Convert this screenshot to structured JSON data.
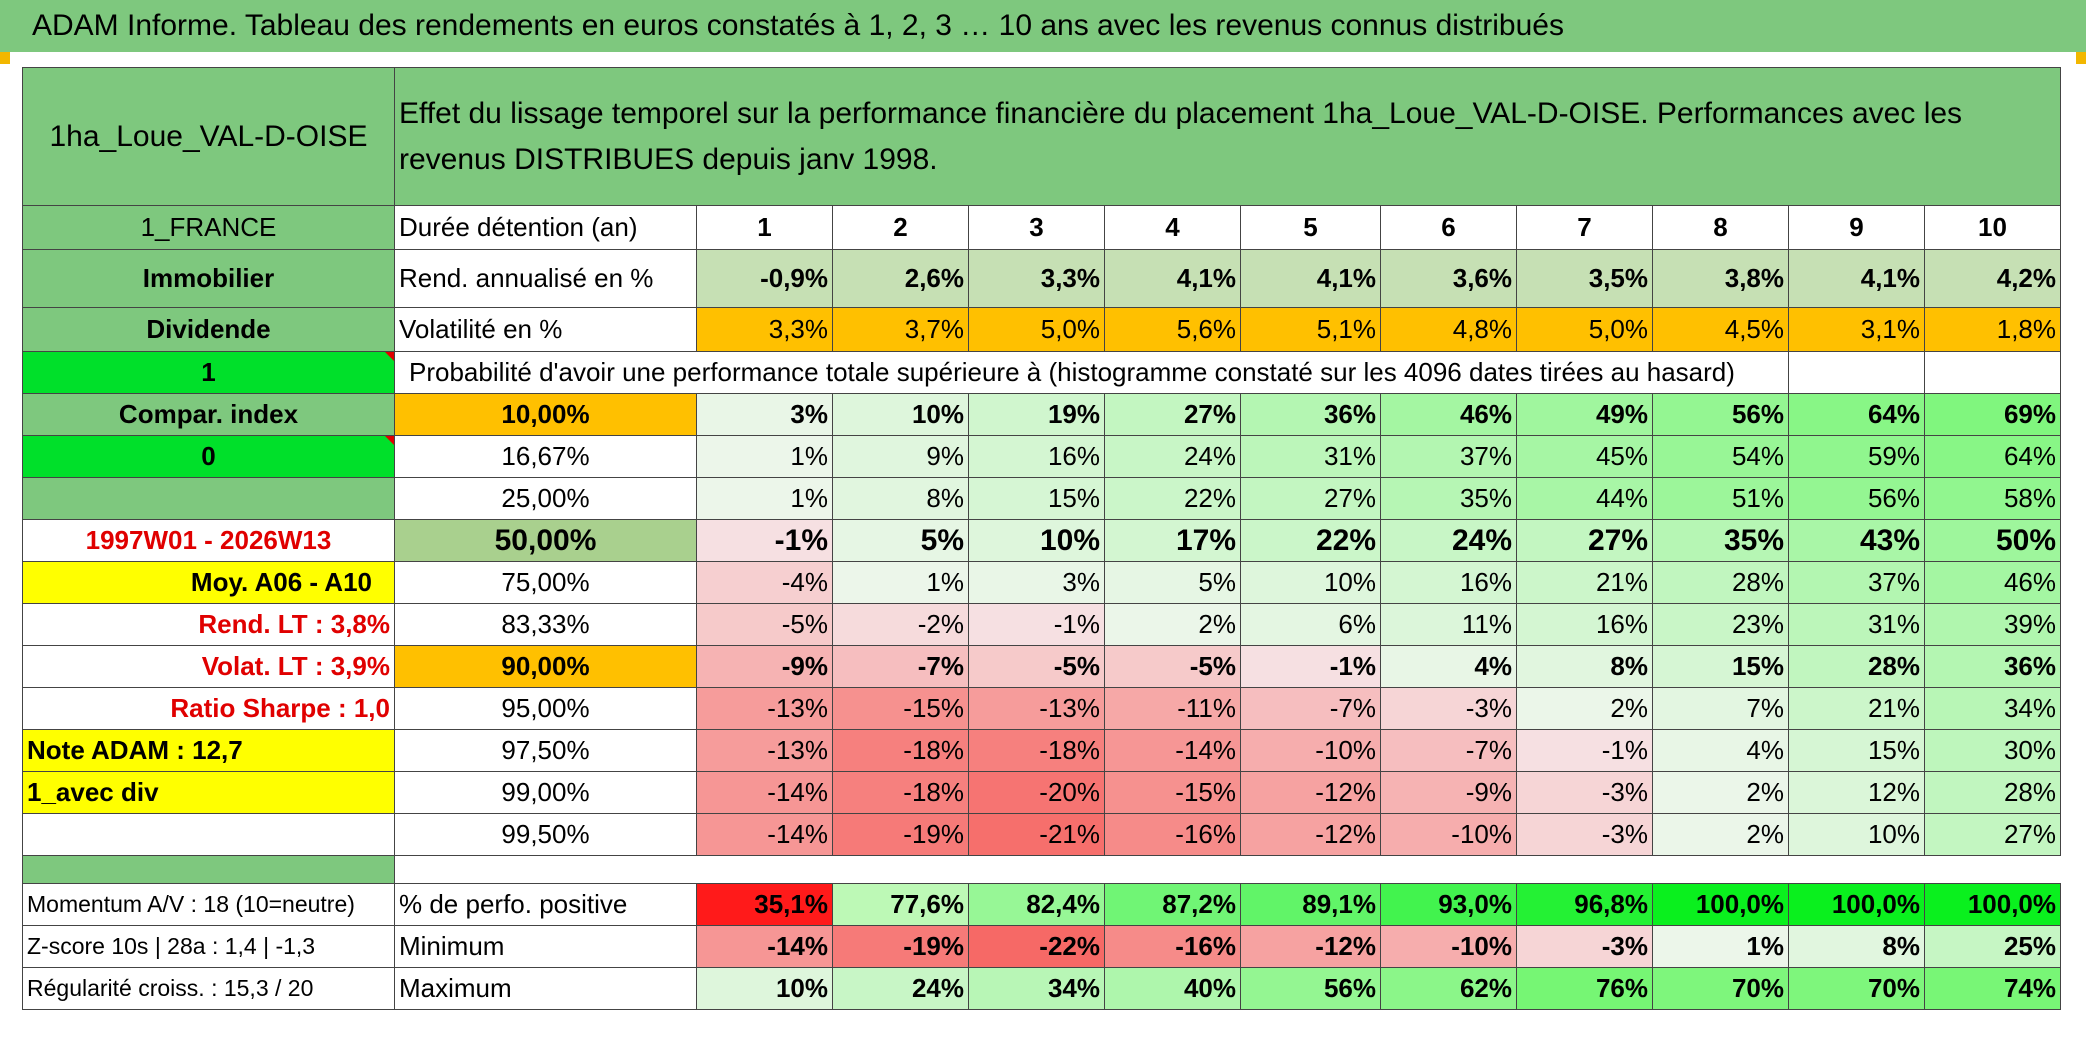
{
  "title": "ADAM Informe. Tableau des rendements en euros constatés à 1, 2, 3 … 10 ans avec les revenus connus distribués",
  "fund_name": "1ha_Loue_VAL-D-OISE",
  "description": "Effet du lissage temporel sur la performance financière du placement 1ha_Loue_VAL-D-OISE. Performances avec les revenus DISTRIBUES depuis janv 1998.",
  "side": {
    "country": "1_FRANCE",
    "category": "Immobilier",
    "income": "Dividende",
    "flag1": "1",
    "compar_index": "Compar. index",
    "flag0": "0",
    "period": "1997W01 - 2026W13",
    "moy": "Moy. A06 - A10",
    "rend_lt": "Rend. LT :   3,8%",
    "volat_lt": "Volat. LT :   3,9%",
    "sharpe": "Ratio Sharpe :    1,0",
    "note": "Note ADAM : 12,7",
    "avec_div": "1_avec div",
    "momentum": "Momentum A/V : 18 (10=neutre)",
    "zscore": "Z-score 10s | 28a : 1,4 | -1,3",
    "regularite": "Régularité croiss. : 15,3 / 20"
  },
  "labels": {
    "duree": "Durée détention (an)",
    "rend": "Rend. annualisé en %",
    "vol": "Volatilité en %",
    "proba": "Probabilité d'avoir une performance totale supérieure à (histogramme constaté sur les 4096 dates tirées au hasard)",
    "pos": "% de perfo. positive",
    "min": "Minimum",
    "max": "Maximum"
  },
  "years": [
    "1",
    "2",
    "3",
    "4",
    "5",
    "6",
    "7",
    "8",
    "9",
    "10"
  ],
  "rend_values": [
    "-0,9%",
    "2,6%",
    "3,3%",
    "4,1%",
    "4,1%",
    "3,6%",
    "3,5%",
    "3,8%",
    "4,1%",
    "4,2%"
  ],
  "vol_values": [
    "3,3%",
    "3,7%",
    "5,0%",
    "5,6%",
    "5,1%",
    "4,8%",
    "5,0%",
    "4,5%",
    "3,1%",
    "1,8%"
  ],
  "percentile_rows": [
    {
      "pct": "10,00%",
      "values": [
        "3%",
        "10%",
        "19%",
        "27%",
        "36%",
        "46%",
        "49%",
        "56%",
        "64%",
        "69%"
      ]
    },
    {
      "pct": "16,67%",
      "values": [
        "1%",
        "9%",
        "16%",
        "24%",
        "31%",
        "37%",
        "45%",
        "54%",
        "59%",
        "64%"
      ]
    },
    {
      "pct": "25,00%",
      "values": [
        "1%",
        "8%",
        "15%",
        "22%",
        "27%",
        "35%",
        "44%",
        "51%",
        "56%",
        "58%"
      ]
    },
    {
      "pct": "50,00%",
      "values": [
        "-1%",
        "5%",
        "10%",
        "17%",
        "22%",
        "24%",
        "27%",
        "35%",
        "43%",
        "50%"
      ]
    },
    {
      "pct": "75,00%",
      "values": [
        "-4%",
        "1%",
        "3%",
        "5%",
        "10%",
        "16%",
        "21%",
        "28%",
        "37%",
        "46%"
      ]
    },
    {
      "pct": "83,33%",
      "values": [
        "-5%",
        "-2%",
        "-1%",
        "2%",
        "6%",
        "11%",
        "16%",
        "23%",
        "31%",
        "39%"
      ]
    },
    {
      "pct": "90,00%",
      "values": [
        "-9%",
        "-7%",
        "-5%",
        "-5%",
        "-1%",
        "4%",
        "8%",
        "15%",
        "28%",
        "36%"
      ]
    },
    {
      "pct": "95,00%",
      "values": [
        "-13%",
        "-15%",
        "-13%",
        "-11%",
        "-7%",
        "-3%",
        "2%",
        "7%",
        "21%",
        "34%"
      ]
    },
    {
      "pct": "97,50%",
      "values": [
        "-13%",
        "-18%",
        "-18%",
        "-14%",
        "-10%",
        "-7%",
        "-1%",
        "4%",
        "15%",
        "30%"
      ]
    },
    {
      "pct": "99,00%",
      "values": [
        "-14%",
        "-18%",
        "-20%",
        "-15%",
        "-12%",
        "-9%",
        "-3%",
        "2%",
        "12%",
        "28%"
      ]
    },
    {
      "pct": "99,50%",
      "values": [
        "-14%",
        "-19%",
        "-21%",
        "-16%",
        "-12%",
        "-10%",
        "-3%",
        "2%",
        "10%",
        "27%"
      ]
    }
  ],
  "pos_values": [
    "35,1%",
    "77,6%",
    "82,4%",
    "87,2%",
    "89,1%",
    "93,0%",
    "96,8%",
    "100,0%",
    "100,0%",
    "100,0%"
  ],
  "min_values": [
    "-14%",
    "-19%",
    "-22%",
    "-16%",
    "-12%",
    "-10%",
    "-3%",
    "1%",
    "8%",
    "25%"
  ],
  "max_values": [
    "10%",
    "24%",
    "34%",
    "40%",
    "56%",
    "62%",
    "76%",
    "70%",
    "70%",
    "74%"
  ]
}
